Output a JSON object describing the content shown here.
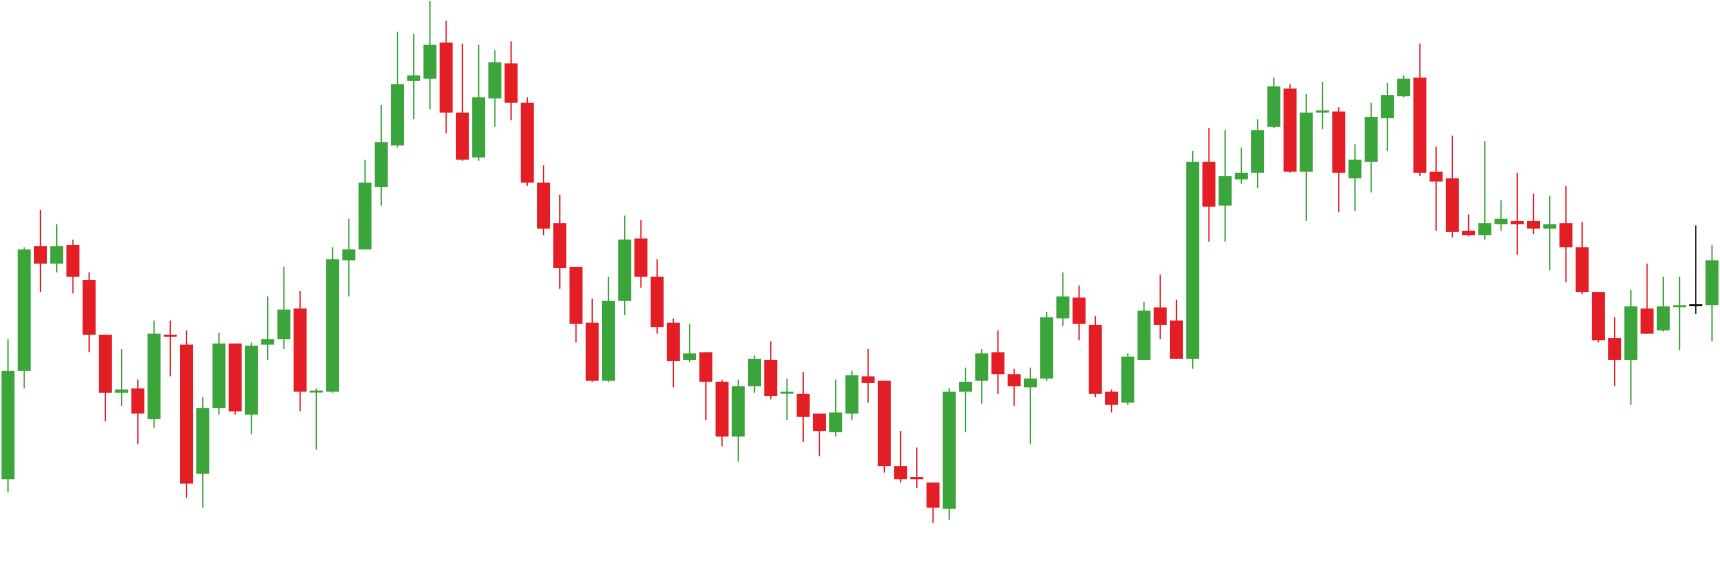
{
  "chart_data": {
    "type": "candlestick",
    "up_color": "#3ba43b",
    "down_color": "#e31e24",
    "flat_color": "#111111",
    "open": [
      75,
      174,
      288,
      272,
      289,
      257,
      207,
      154,
      158,
      130,
      207,
      198,
      80,
      140,
      199,
      134,
      198,
      203,
      231,
      155,
      155,
      275,
      285,
      342,
      380,
      439,
      441,
      474,
      410,
      369,
      423,
      455,
      419,
      346,
      309,
      269,
      218,
      165,
      238,
      295,
      260,
      218,
      184,
      191,
      164,
      114,
      160,
      184,
      154,
      153,
      135,
      118,
      135,
      169,
      165,
      87,
      77,
      72,
      48,
      155,
      165,
      191,
      171,
      159,
      167,
      222,
      241,
      216,
      155,
      145,
      184,
      232,
      220,
      185,
      365,
      325,
      349,
      355,
      397,
      432,
      356,
      410,
      411,
      350,
      365,
      405,
      425,
      442,
      356,
      350,
      302,
      298,
      308,
      311,
      311,
      304,
      309,
      287,
      246,
      204,
      184,
      231,
      211,
      233,
      235,
      234
    ],
    "high": [
      203,
      287,
      321,
      308,
      294,
      264,
      207,
      194,
      166,
      220,
      220,
      211,
      150,
      209,
      199,
      200,
      242,
      269,
      247,
      158,
      287,
      313,
      367,
      417,
      484,
      482,
      512,
      494,
      473,
      472,
      467,
      475,
      424,
      362,
      335,
      269,
      240,
      260,
      316,
      312,
      276,
      222,
      217,
      191,
      166,
      166,
      188,
      201,
      167,
      173,
      135,
      166,
      174,
      194,
      165,
      119,
      104,
      72,
      158,
      177,
      194,
      211,
      176,
      177,
      228,
      264,
      252,
      224,
      157,
      190,
      237,
      262,
      239,
      375,
      396,
      394,
      378,
      404,
      442,
      436,
      427,
      438,
      415,
      381,
      419,
      437,
      444,
      473,
      379,
      389,
      317,
      384,
      330,
      355,
      336,
      334,
      343,
      310,
      246,
      223,
      248,
      272,
      260,
      260,
      307,
      289
    ],
    "low": [
      63,
      158,
      246,
      264,
      245,
      191,
      128,
      142,
      107,
      122,
      169,
      58,
      49,
      134,
      134,
      116,
      184,
      194,
      137,
      102,
      154,
      242,
      285,
      325,
      378,
      404,
      413,
      391,
      366,
      366,
      397,
      403,
      343,
      298,
      249,
      200,
      164,
      164,
      225,
      250,
      208,
      159,
      182,
      129,
      105,
      91,
      154,
      148,
      129,
      109,
      96,
      114,
      129,
      145,
      81,
      72,
      67,
      35,
      38,
      118,
      144,
      153,
      142,
      107,
      165,
      215,
      202,
      150,
      136,
      143,
      184,
      203,
      185,
      176,
      292,
      292,
      345,
      341,
      396,
      355,
      311,
      395,
      319,
      320,
      337,
      375,
      424,
      352,
      302,
      296,
      297,
      294,
      302,
      280,
      299,
      266,
      255,
      244,
      200,
      160,
      143,
      208,
      210,
      193,
      226,
      201
    ],
    "close": [
      174,
      285,
      272,
      288,
      260,
      207,
      154,
      157,
      135,
      208,
      206,
      71,
      140,
      199,
      137,
      197,
      203,
      230,
      155,
      156,
      276,
      285,
      346,
      383,
      436,
      444,
      472,
      410,
      367,
      424,
      456,
      419,
      346,
      304,
      268,
      217,
      165,
      238,
      294,
      260,
      214,
      183,
      190,
      164,
      114,
      160,
      185,
      151,
      155,
      132,
      119,
      136,
      170,
      163,
      87,
      75,
      75,
      49,
      155,
      164,
      190,
      171,
      160,
      167,
      223,
      242,
      217,
      153,
      143,
      187,
      229,
      216,
      185,
      365,
      324,
      352,
      355,
      394,
      434,
      356,
      410,
      412,
      355,
      367,
      406,
      426,
      441,
      355,
      347,
      301,
      298,
      309,
      313,
      308,
      304,
      308,
      287,
      246,
      202,
      184,
      233,
      208,
      233,
      234,
      235,
      275
    ]
  }
}
